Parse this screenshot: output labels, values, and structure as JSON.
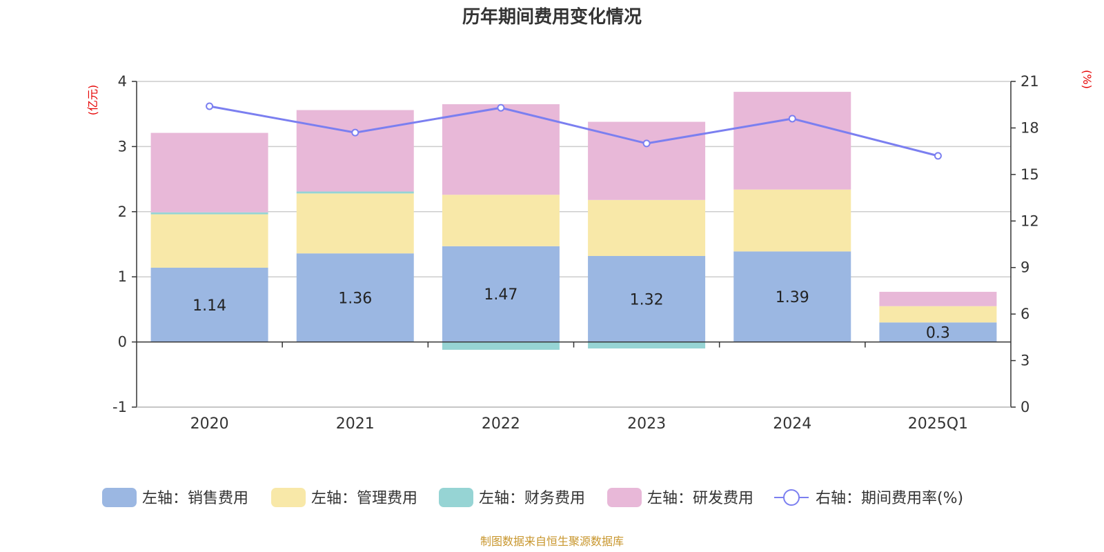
{
  "chart_data": {
    "type": "bar",
    "title": "历年期间费用变化情况",
    "left_axis_unit": "(亿元)",
    "right_axis_unit": "(%)",
    "categories": [
      "2020",
      "2021",
      "2022",
      "2023",
      "2024",
      "2025Q1"
    ],
    "left_ylim": [
      -1,
      4
    ],
    "left_ticks": [
      "-1",
      "0",
      "1",
      "2",
      "3",
      "4"
    ],
    "right_ylim": [
      0,
      21
    ],
    "right_ticks": [
      "0",
      "3",
      "6",
      "9",
      "12",
      "15",
      "18",
      "21"
    ],
    "stacked": true,
    "grid": true,
    "legend_position": "bottom",
    "series": [
      {
        "name": "左轴：销售费用",
        "axis": "left",
        "type": "bar",
        "color": "#9bb7e2",
        "values": [
          1.14,
          1.36,
          1.47,
          1.32,
          1.39,
          0.3
        ],
        "labels": [
          "1.14",
          "1.36",
          "1.47",
          "1.32",
          "1.39",
          "0.3"
        ]
      },
      {
        "name": "左轴：管理费用",
        "axis": "left",
        "type": "bar",
        "color": "#f8e8a8",
        "values": [
          0.82,
          0.92,
          0.79,
          0.86,
          0.95,
          0.25
        ]
      },
      {
        "name": "左轴：财务费用",
        "axis": "left",
        "type": "bar",
        "color": "#96d4d4",
        "values": [
          0.03,
          0.03,
          -0.12,
          -0.1,
          0.0,
          0.0
        ]
      },
      {
        "name": "左轴：研发费用",
        "axis": "left",
        "type": "bar",
        "color": "#e8b8d8",
        "values": [
          1.22,
          1.25,
          1.39,
          1.2,
          1.5,
          0.22
        ]
      },
      {
        "name": "右轴：期间费用率(%)",
        "axis": "right",
        "type": "line",
        "color": "#7b7ff0",
        "values": [
          19.4,
          17.7,
          19.3,
          17.0,
          18.6,
          16.2
        ]
      }
    ],
    "source": "制图数据来自恒生聚源数据库"
  }
}
